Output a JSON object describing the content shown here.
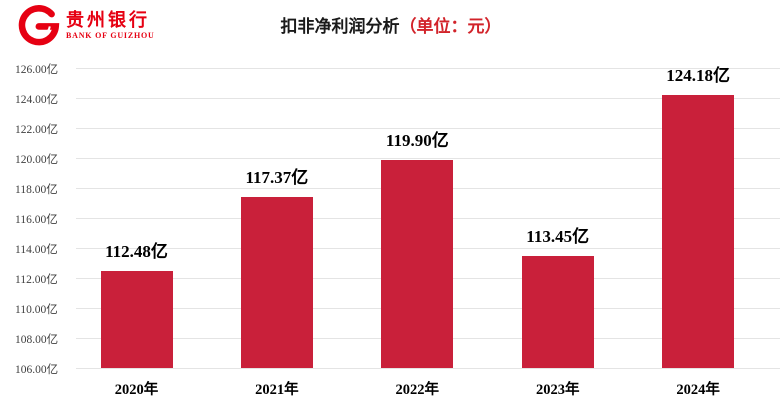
{
  "header": {
    "logo": {
      "cn_name": "贵州银行",
      "en_name": "BANK OF GUIZHOU"
    },
    "title_main": "扣非净利润分析",
    "title_unit": "（单位：元）"
  },
  "colors": {
    "bar": "#c9203a",
    "logo_red": "#e60012",
    "title_unit_red": "#d2232a",
    "gridline": "#e4e4e4"
  },
  "chart_data": {
    "type": "bar",
    "title": "扣非净利润分析（单位：元）",
    "categories": [
      "2020年",
      "2021年",
      "2022年",
      "2023年",
      "2024年"
    ],
    "values": [
      112.48,
      117.37,
      119.9,
      113.45,
      124.18
    ],
    "value_labels": [
      "112.48亿",
      "117.37亿",
      "119.90亿",
      "113.45亿",
      "124.18亿"
    ],
    "y_ticks": [
      "126.00亿",
      "124.00亿",
      "122.00亿",
      "120.00亿",
      "118.00亿",
      "116.00亿",
      "114.00亿",
      "112.00亿",
      "110.00亿",
      "108.00亿",
      "106.00亿"
    ],
    "ylim": [
      106,
      126
    ],
    "xlabel": "",
    "ylabel": "",
    "grid": true,
    "legend": false,
    "bar_color": "#c9203a"
  }
}
